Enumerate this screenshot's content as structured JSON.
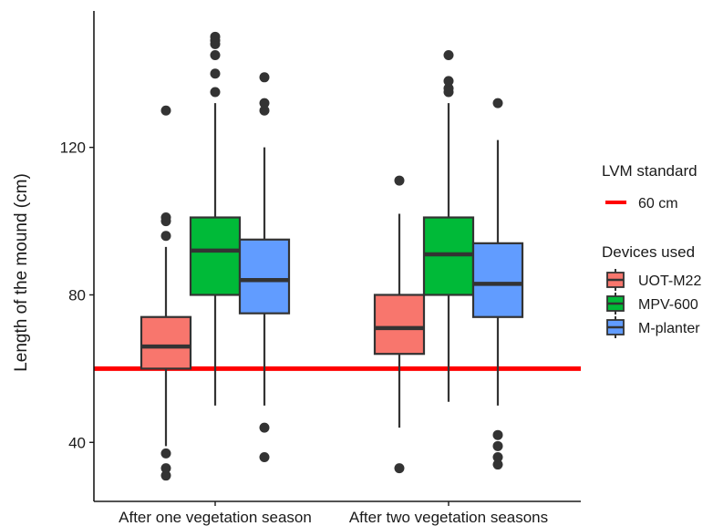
{
  "chart_data": {
    "type": "boxplot",
    "title": "",
    "xlabel": "",
    "ylabel": "Length of the mound (cm)",
    "ylim": [
      24,
      157
    ],
    "yticks": [
      40,
      80,
      120
    ],
    "categories": [
      "After one vegetation season",
      "After two vegetation seasons"
    ],
    "series": [
      {
        "name": "UOT-M22",
        "color": "#F8766D",
        "boxes": [
          {
            "whisker_low": 39,
            "q1": 60,
            "median": 66,
            "q3": 74,
            "whisker_high": 93,
            "outliers": [
              31,
              33,
              37,
              96,
              100,
              101,
              130
            ]
          },
          {
            "whisker_low": 44,
            "q1": 64,
            "median": 71,
            "q3": 80,
            "whisker_high": 102,
            "outliers": [
              33,
              111
            ]
          }
        ]
      },
      {
        "name": "MPV-600",
        "color": "#00BA38",
        "boxes": [
          {
            "whisker_low": 50,
            "q1": 80,
            "median": 92,
            "q3": 101,
            "whisker_high": 132,
            "outliers": [
              135,
              140,
              145,
              148,
              149,
              150
            ]
          },
          {
            "whisker_low": 51,
            "q1": 80,
            "median": 91,
            "q3": 101,
            "whisker_high": 132,
            "outliers": [
              135,
              136,
              138,
              145
            ]
          }
        ]
      },
      {
        "name": "M-planter",
        "color": "#619CFF",
        "boxes": [
          {
            "whisker_low": 50,
            "q1": 75,
            "median": 84,
            "q3": 95,
            "whisker_high": 120,
            "outliers": [
              36,
              44,
              130,
              132,
              139
            ]
          },
          {
            "whisker_low": 50,
            "q1": 74,
            "median": 83,
            "q3": 94,
            "whisker_high": 122,
            "outliers": [
              34,
              36,
              39,
              42,
              132
            ]
          }
        ]
      }
    ],
    "reference_line": {
      "value": 60,
      "label": "60 cm",
      "color": "#FF0000"
    },
    "legend": {
      "position": "right",
      "reference_title": "LVM standard",
      "devices_title": "Devices used"
    }
  }
}
